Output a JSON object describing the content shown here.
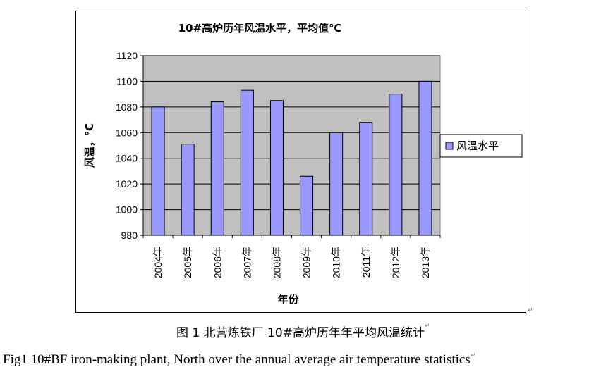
{
  "chart_data": {
    "type": "bar",
    "title": "10#高炉历年风温水平，平均值℃",
    "xlabel": "年份",
    "ylabel": "风温，℃",
    "categories": [
      "2004年",
      "2005年",
      "2006年",
      "2007年",
      "2008年",
      "2009年",
      "2010年",
      "2011年",
      "2012年",
      "2013年"
    ],
    "series": [
      {
        "name": "风温水平",
        "values": [
          1080,
          1051,
          1084,
          1093,
          1085,
          1026,
          1060,
          1068,
          1090,
          1100
        ]
      }
    ],
    "ylim": [
      980,
      1120
    ],
    "yticks": [
      "980",
      "1000",
      "1020",
      "1040",
      "1060",
      "1080",
      "1100",
      "1120"
    ],
    "grid": true,
    "legend_position": "right",
    "colors": {
      "bar": "#9999ff",
      "plot_bg": "#c0c0c0",
      "bar_border": "#000000"
    }
  },
  "captions": {
    "chinese": "图 1  北营炼铁厂 10#高炉历年年平均风温统计",
    "english": "Fig1 10#BF iron-making plant, North over the annual average air temperature statistics"
  }
}
